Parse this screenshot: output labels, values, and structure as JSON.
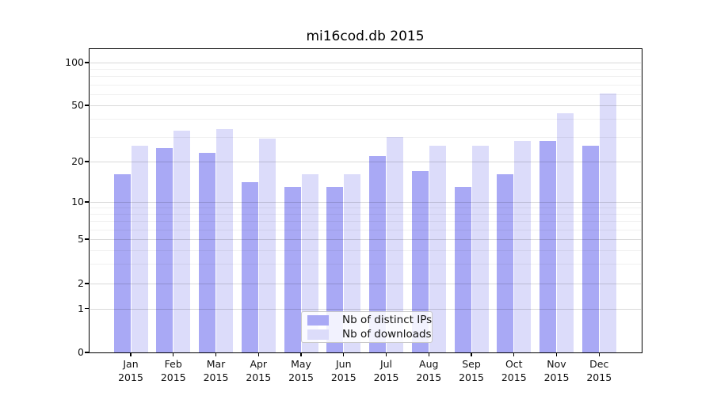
{
  "title": "mi16cod.db 2015",
  "chart_data": {
    "type": "bar",
    "categories": [
      "Jan",
      "Feb",
      "Mar",
      "Apr",
      "May",
      "Jun",
      "Jul",
      "Aug",
      "Sep",
      "Oct",
      "Nov",
      "Dec"
    ],
    "year_label": "2015",
    "series": [
      {
        "name": "Nb of distinct IPs",
        "color": "#a9a9f5",
        "values": [
          16,
          25,
          23,
          14,
          13,
          13,
          22,
          17,
          13,
          16,
          28,
          26
        ]
      },
      {
        "name": "Nb of downloads",
        "color": "#dcdcfa",
        "values": [
          26,
          33,
          34,
          29,
          16,
          16,
          30,
          26,
          26,
          28,
          44,
          61
        ]
      }
    ],
    "yticks": [
      100,
      50,
      20,
      10,
      5,
      2,
      1,
      0
    ],
    "minor_yticks": [
      3,
      4,
      6,
      7,
      8,
      9,
      30,
      40,
      60,
      70,
      80,
      90
    ],
    "ylim": [
      0,
      126
    ],
    "yscale": "log-like (1-2-5 tick progression, linear below 1)",
    "xlabel": "",
    "ylabel": "",
    "grid": "major and minor horizontal gridlines drawn over bars",
    "legend_position": "inside plot, lower center"
  },
  "colors": {
    "background": "#ffffff",
    "bar_distinct_ips": "#a9a9f5",
    "bar_downloads": "#dcdcfa",
    "axis_spine": "#000000",
    "grid_major": "rgba(0,0,0,0.15)",
    "grid_minor": "rgba(0,0,0,0.06)",
    "text": "#111111",
    "legend_border": "#c7c7c7"
  }
}
